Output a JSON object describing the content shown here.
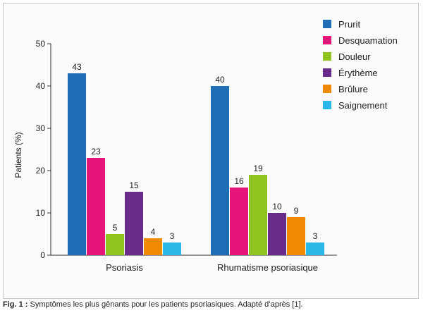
{
  "chart_data": {
    "type": "bar",
    "ylabel": "Patients (%)",
    "ylim": [
      0,
      50
    ],
    "yticks": [
      0,
      10,
      20,
      30,
      40,
      50
    ],
    "grid": false,
    "legend_position": "top-right",
    "categories": [
      "Psoriasis",
      "Rhumatisme psoriasique"
    ],
    "series": [
      {
        "name": "Prurit",
        "color": "#1f6db5",
        "values": [
          43,
          40
        ]
      },
      {
        "name": "Desquamation",
        "color": "#e6157a",
        "values": [
          23,
          16
        ]
      },
      {
        "name": "Douleur",
        "color": "#8fc31f",
        "values": [
          5,
          19
        ]
      },
      {
        "name": "Érythème",
        "color": "#6a2c8a",
        "values": [
          15,
          10
        ]
      },
      {
        "name": "Brûlure",
        "color": "#f08a00",
        "values": [
          4,
          9
        ]
      },
      {
        "name": "Saignement",
        "color": "#2ab8e8",
        "values": [
          3,
          3
        ]
      }
    ]
  },
  "caption": {
    "label": "Fig. 1 :",
    "text": " Symptômes les plus gênants pour les patients psoriasiques. Adapté d’après [1]."
  }
}
